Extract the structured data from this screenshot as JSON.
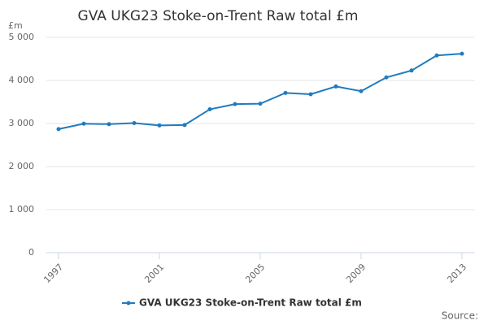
{
  "chart_data": {
    "type": "line",
    "title": "GVA UKG23 Stoke-on-Trent Raw total £m",
    "y_label": "£m",
    "source": "Source:",
    "x": [
      1997,
      1998,
      1999,
      2000,
      2001,
      2002,
      2003,
      2004,
      2005,
      2006,
      2007,
      2008,
      2009,
      2010,
      2011,
      2012,
      2013
    ],
    "series": [
      {
        "name": "GVA UKG23 Stoke-on-Trent Raw total £m",
        "color": "#1f7bbf",
        "values": [
          2870,
          2995,
          2985,
          3010,
          2955,
          2965,
          3330,
          3450,
          3460,
          3710,
          3680,
          3860,
          3750,
          4070,
          4230,
          4580,
          4620
        ]
      }
    ],
    "xlim": [
      1996.5,
      2013.5
    ],
    "xticks": [
      1997,
      2001,
      2005,
      2009,
      2013
    ],
    "ylim": [
      0,
      5000
    ],
    "yticks": [
      0,
      {
        "value": 1000,
        "label": "1 000"
      },
      {
        "value": 2000,
        "label": "2 000"
      },
      {
        "value": 3000,
        "label": "3 000"
      },
      {
        "value": 4000,
        "label": "4 000"
      },
      {
        "value": 5000,
        "label": "5 000"
      }
    ],
    "grid": true,
    "legend": "bottom"
  }
}
